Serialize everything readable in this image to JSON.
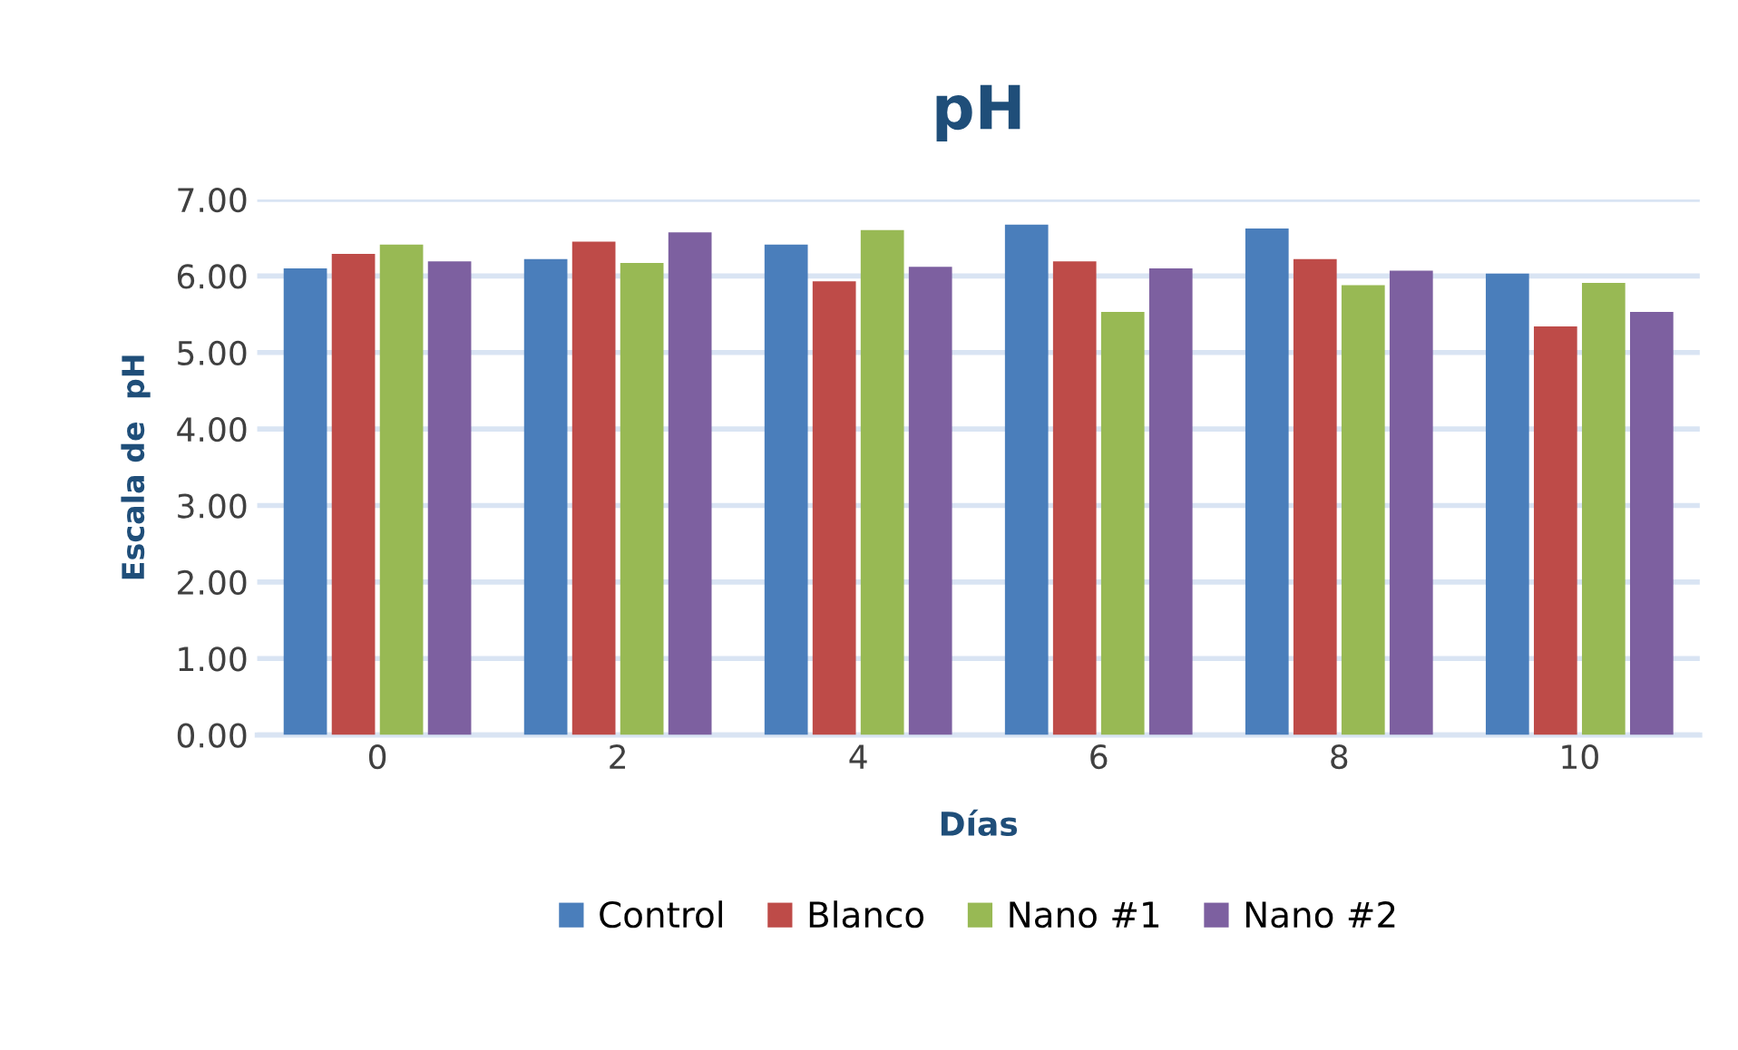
{
  "chart_data": {
    "type": "bar",
    "title": "pH",
    "xlabel": "Días",
    "ylabel": "Escala de  pH",
    "categories": [
      "0",
      "2",
      "4",
      "6",
      "8",
      "10"
    ],
    "series": [
      {
        "name": "Control",
        "color": "#4a7ebb",
        "values": [
          6.1,
          6.22,
          6.41,
          6.67,
          6.62,
          6.03
        ]
      },
      {
        "name": "Blanco",
        "color": "#be4b48",
        "values": [
          6.29,
          6.45,
          5.93,
          6.19,
          6.22,
          5.34
        ]
      },
      {
        "name": "Nano #1",
        "color": "#98b954",
        "values": [
          6.41,
          6.17,
          6.6,
          5.53,
          5.88,
          5.91
        ]
      },
      {
        "name": "Nano #2",
        "color": "#7d60a0",
        "values": [
          6.19,
          6.57,
          6.12,
          6.1,
          6.07,
          5.53
        ]
      }
    ],
    "ylim": [
      0,
      7
    ],
    "yticks": [
      {
        "value": 0,
        "label": "0.00"
      },
      {
        "value": 1,
        "label": "1.00"
      },
      {
        "value": 2,
        "label": "2.00"
      },
      {
        "value": 3,
        "label": "3.00"
      },
      {
        "value": 4,
        "label": "4.00"
      },
      {
        "value": 5,
        "label": "5.00"
      },
      {
        "value": 6,
        "label": "6.00"
      },
      {
        "value": 7,
        "label": "7.00"
      }
    ],
    "grid": "y",
    "legend": "bottom"
  }
}
